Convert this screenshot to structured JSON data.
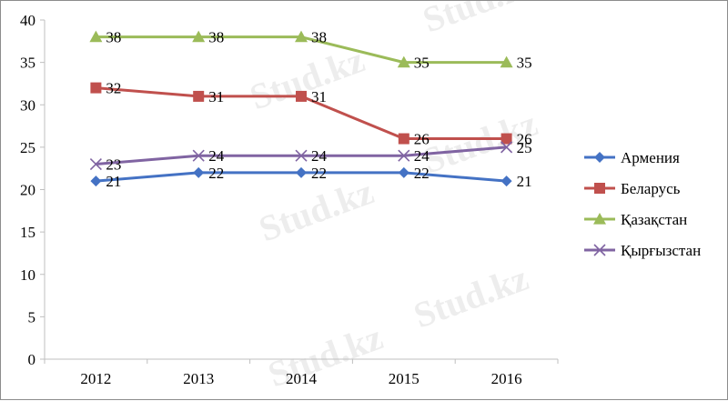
{
  "watermark": "Stud.kz",
  "colors": {
    "axis": "#bfbfbf",
    "background": "#ffffff"
  },
  "chart_data": {
    "type": "line",
    "title": "",
    "xlabel": "",
    "ylabel": "",
    "categories": [
      "2012",
      "2013",
      "2014",
      "2015",
      "2016"
    ],
    "ylim": [
      0,
      40
    ],
    "yticks": [
      0,
      5,
      10,
      15,
      20,
      25,
      30,
      35,
      40
    ],
    "grid": false,
    "legend_position": "right",
    "series": [
      {
        "name": "Армения",
        "values": [
          21,
          22,
          22,
          22,
          21
        ],
        "color": "#4472c4",
        "marker": "diamond"
      },
      {
        "name": "Беларусь",
        "values": [
          32,
          31,
          31,
          26,
          26
        ],
        "color": "#c0504d",
        "marker": "square"
      },
      {
        "name": "Қазақстан",
        "values": [
          38,
          38,
          38,
          35,
          35
        ],
        "color": "#9bbb59",
        "marker": "triangle"
      },
      {
        "name": "Қырғызстан",
        "values": [
          23,
          24,
          24,
          24,
          25
        ],
        "color": "#8064a2",
        "marker": "x"
      }
    ]
  }
}
